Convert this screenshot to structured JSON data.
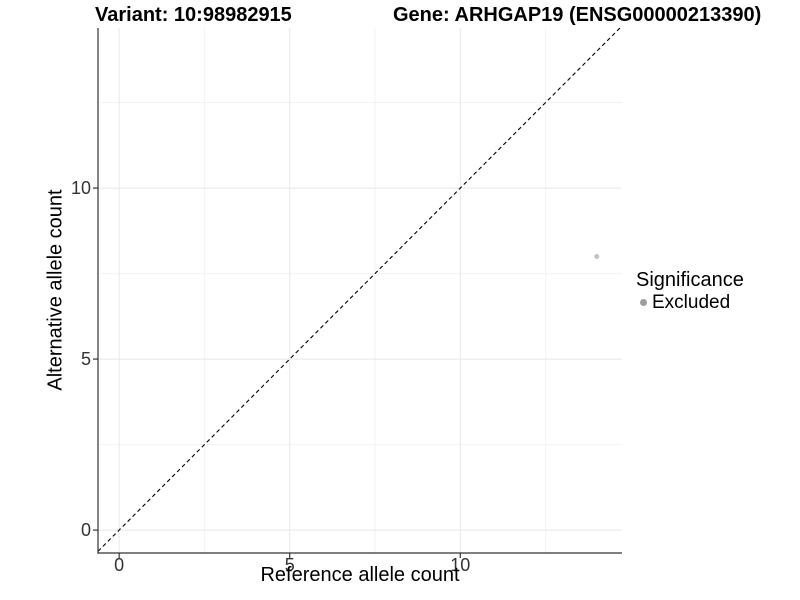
{
  "chart_data": {
    "type": "scatter",
    "title_left": "Variant: 10:98982915",
    "title_right": "Gene: ARHGAP19 (ENSG00000213390)",
    "xlabel": "Reference allele count",
    "ylabel": "Alternative allele count",
    "xlim": [
      -0.62,
      14.74
    ],
    "ylim": [
      -0.67,
      14.68
    ],
    "x_major_ticks": [
      0,
      5,
      10
    ],
    "y_major_ticks": [
      0,
      5,
      10
    ],
    "x_minor_ticks": [
      2.5,
      7.5,
      12.5
    ],
    "y_minor_ticks": [
      2.5,
      7.5,
      12.5
    ],
    "grid": true,
    "points": [
      {
        "x": 14,
        "y": 8,
        "series": "Excluded"
      }
    ],
    "reference_line": {
      "kind": "identity y=x",
      "style": "dashed",
      "color": "#000000"
    },
    "legend": {
      "title": "Significance",
      "position": "right",
      "entries": [
        {
          "label": "Excluded",
          "color": "#9e9e9e"
        }
      ]
    },
    "colors": {
      "point": "#c3c3c3",
      "axis": "#333333",
      "grid_major": "#e8e8e8",
      "grid_minor": "#f3f3f3",
      "tick_label": "#333333"
    }
  }
}
